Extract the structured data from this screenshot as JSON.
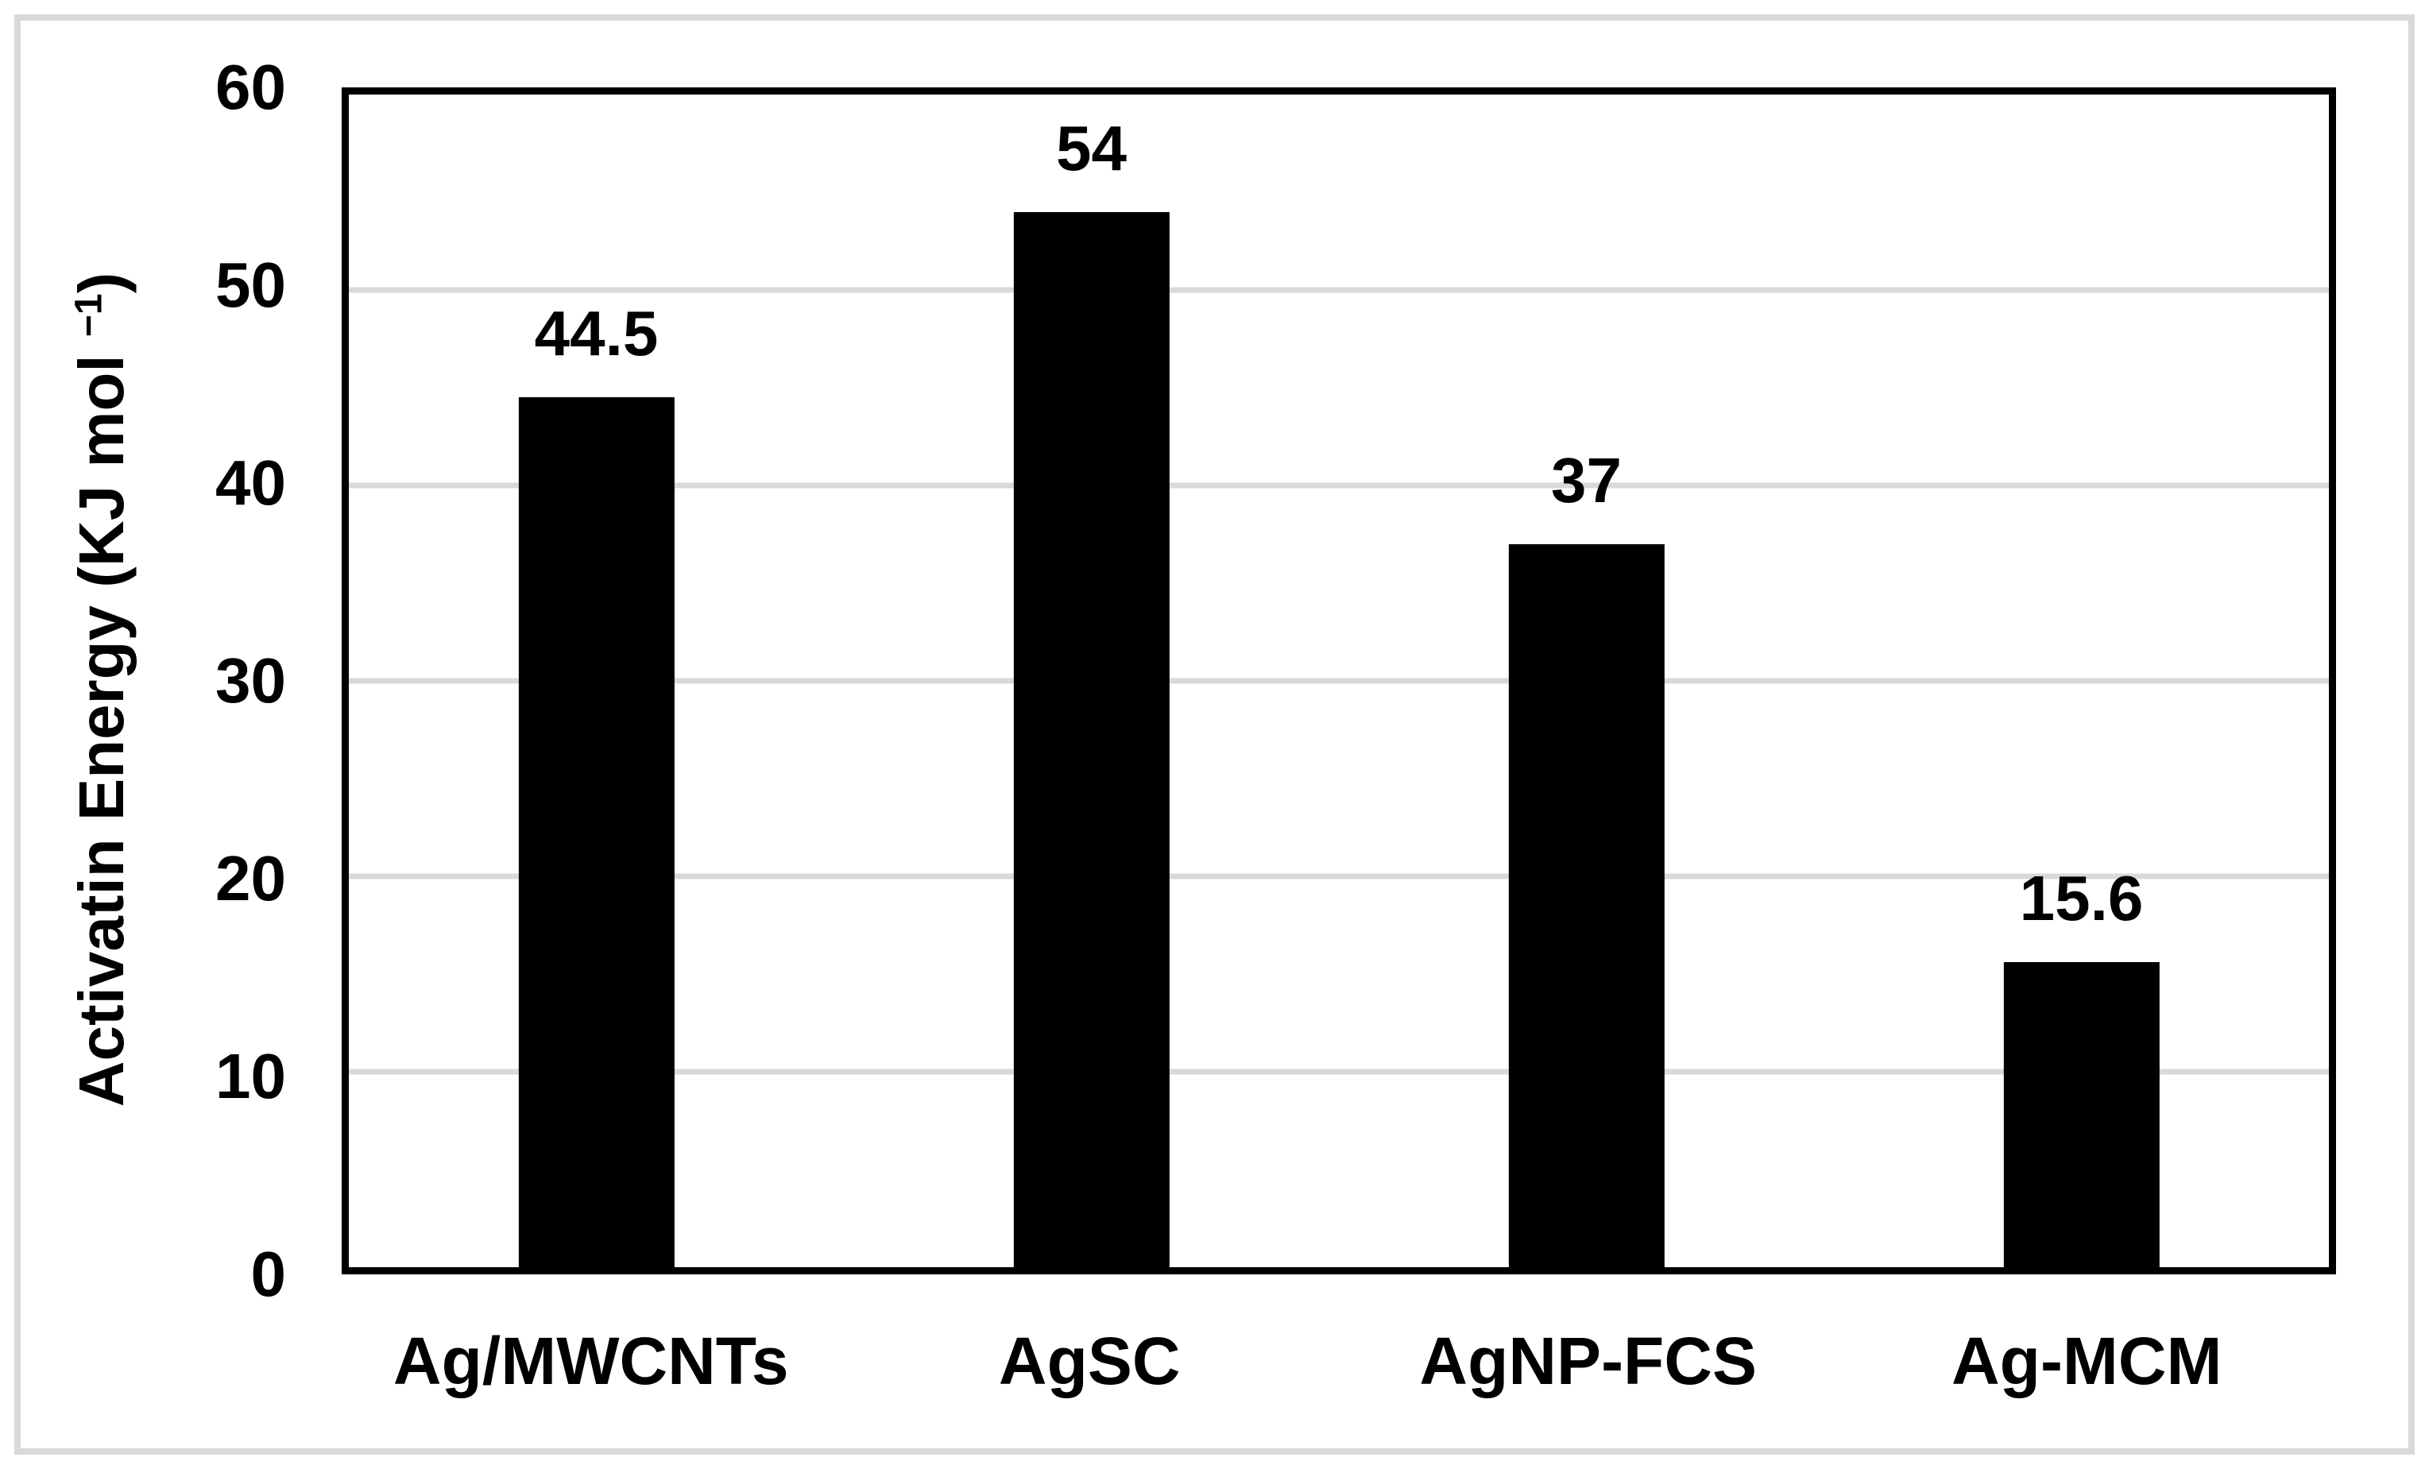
{
  "chart_data": {
    "type": "bar",
    "title": "",
    "categories": [
      "Ag/MWCNTs",
      "AgSC",
      "AgNP-FCS",
      "Ag-MCM"
    ],
    "values": [
      44.5,
      54,
      37,
      15.6
    ],
    "value_labels": [
      "44.5",
      "54",
      "37",
      "15.6"
    ],
    "series_count": 1,
    "xlabel": "",
    "ylabel": "Activatin Energy (KJ mol ",
    "ylabel_sup": "−1",
    "ylabel_end": ")",
    "ylabel_full": "Activatin Energy (KJ mol ⁻¹)",
    "ylim": [
      0,
      60
    ],
    "yticks": [
      0,
      10,
      20,
      30,
      40,
      50,
      60
    ],
    "grid": "horizontal",
    "legend": "none",
    "bar_color": "#000000",
    "gridline_color": "#d9d9d9",
    "axis_border_color": "#000000",
    "figure_border_color": "#d9d9d9",
    "background_color": "#ffffff"
  }
}
